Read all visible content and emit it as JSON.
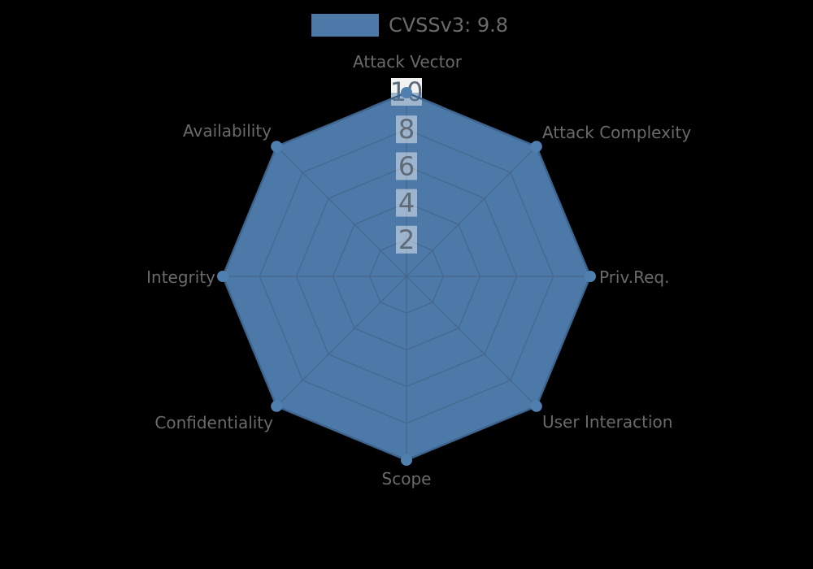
{
  "legend": {
    "label": "CVSSv3: 9.8",
    "swatch_color": "#4d79a8"
  },
  "chart_data": {
    "type": "radar",
    "title": "",
    "axes": [
      "Attack Vector",
      "Attack Complexity",
      "Priv.Req.",
      "User Interaction",
      "Scope",
      "Confidentiality",
      "Integrity",
      "Availability"
    ],
    "series": [
      {
        "name": "CVSSv3: 9.8",
        "color": "#4d79a8",
        "values": [
          10,
          10,
          10,
          10,
          10,
          10,
          10,
          10
        ]
      }
    ],
    "radial_ticks": [
      2,
      4,
      6,
      8,
      10
    ],
    "radial_range": [
      0,
      10
    ],
    "grid": true,
    "legend_position": "top-center",
    "start_axis": "top",
    "direction": "clockwise"
  },
  "colors": {
    "background": "#000000",
    "fill": "#4d79a8",
    "edge": "#3e648e",
    "grid": "#45688d",
    "marker": "#5080af",
    "axis_label_text": "#6a6a6a",
    "tick_text": "#5f6a78",
    "tick_box": "rgba(255,255,255,0.45)",
    "tick_box_top": "#f2f2f2",
    "legend_text": "#6b6b6b"
  }
}
